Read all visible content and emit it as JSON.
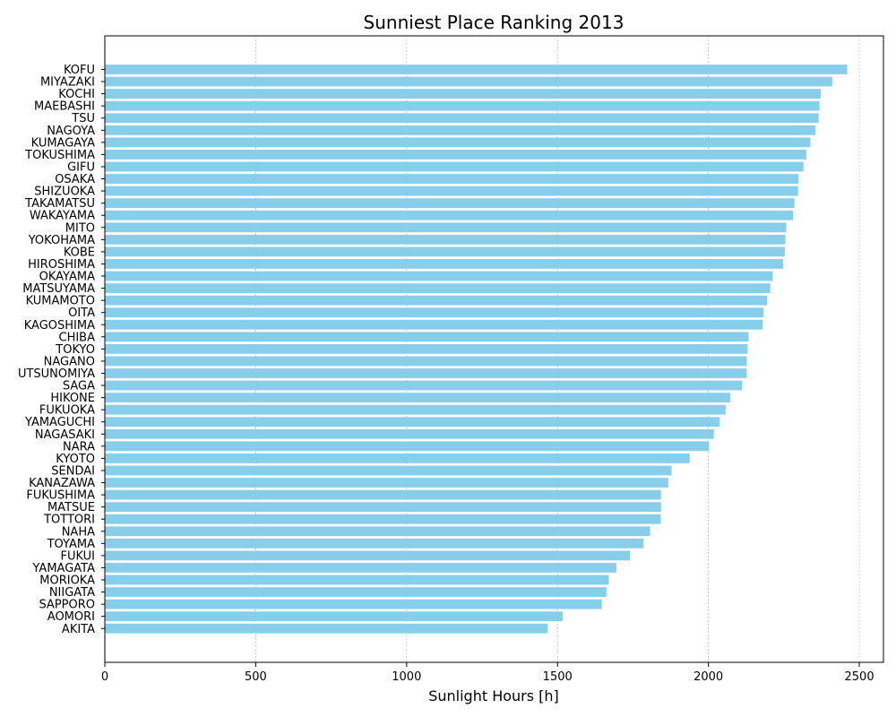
{
  "chart_data": {
    "type": "bar",
    "orientation": "horizontal",
    "title": "Sunniest Place Ranking 2013",
    "xlabel": "Sunlight Hours [h]",
    "ylabel": "",
    "xlim": [
      0,
      2580
    ],
    "xticks": [
      0,
      500,
      1000,
      1500,
      2000,
      2500
    ],
    "grid": "x",
    "color": "#87ceeb",
    "categories": [
      "KOFU",
      "MIYAZAKI",
      "KOCHI",
      "MAEBASHI",
      "TSU",
      "NAGOYA",
      "KUMAGAYA",
      "TOKUSHIMA",
      "GIFU",
      "OSAKA",
      "SHIZUOKA",
      "TAKAMATSU",
      "WAKAYAMA",
      "MITO",
      "YOKOHAMA",
      "KOBE",
      "HIROSHIMA",
      "OKAYAMA",
      "MATSUYAMA",
      "KUMAMOTO",
      "OITA",
      "KAGOSHIMA",
      "CHIBA",
      "TOKYO",
      "NAGANO",
      "UTSUNOMIYA",
      "SAGA",
      "HIKONE",
      "FUKUOKA",
      "YAMAGUCHI",
      "NAGASAKI",
      "NARA",
      "KYOTO",
      "SENDAI",
      "KANAZAWA",
      "FUKUSHIMA",
      "MATSUE",
      "TOTTORI",
      "NAHA",
      "TOYAMA",
      "FUKUI",
      "YAMAGATA",
      "MORIOKA",
      "NIIGATA",
      "SAPPORO",
      "AOMORI",
      "AKITA"
    ],
    "values": [
      2460,
      2410,
      2372,
      2368,
      2365,
      2355,
      2338,
      2325,
      2315,
      2298,
      2297,
      2285,
      2280,
      2258,
      2255,
      2253,
      2248,
      2213,
      2205,
      2195,
      2183,
      2180,
      2133,
      2130,
      2127,
      2127,
      2112,
      2072,
      2057,
      2037,
      2018,
      2002,
      1938,
      1878,
      1867,
      1843,
      1843,
      1842,
      1807,
      1785,
      1740,
      1695,
      1670,
      1662,
      1647,
      1517,
      1467
    ]
  }
}
